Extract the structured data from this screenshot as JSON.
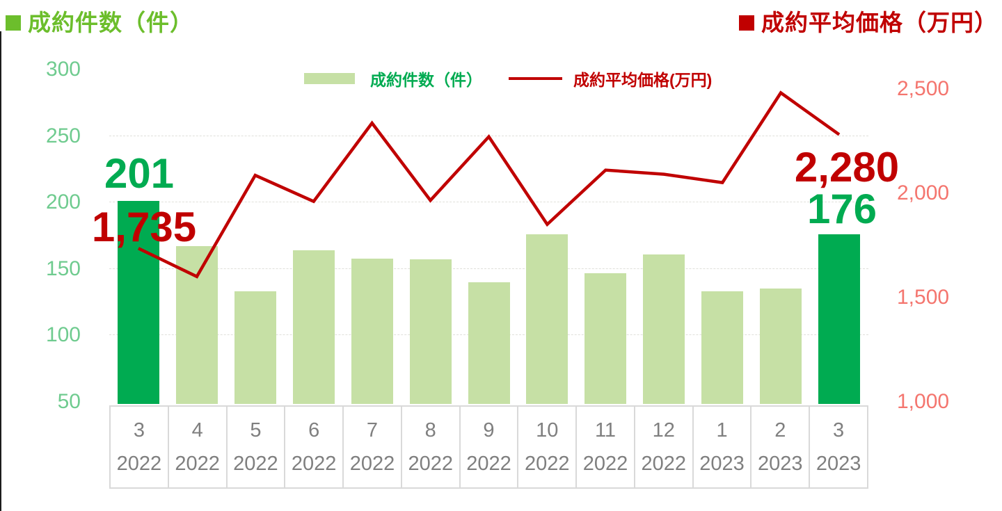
{
  "header": {
    "left_title": "成約件数（件）",
    "right_title": "成約平均価格（万円）"
  },
  "legend": {
    "bar_label": "成約件数（件）",
    "line_label": "成約平均価格(万円)"
  },
  "chart_data": {
    "type": "bar+line combo",
    "categories": [
      {
        "month": "3",
        "year": "2022"
      },
      {
        "month": "4",
        "year": "2022"
      },
      {
        "month": "5",
        "year": "2022"
      },
      {
        "month": "6",
        "year": "2022"
      },
      {
        "month": "7",
        "year": "2022"
      },
      {
        "month": "8",
        "year": "2022"
      },
      {
        "month": "9",
        "year": "2022"
      },
      {
        "month": "10",
        "year": "2022"
      },
      {
        "month": "11",
        "year": "2022"
      },
      {
        "month": "12",
        "year": "2022"
      },
      {
        "month": "1",
        "year": "2023"
      },
      {
        "month": "2",
        "year": "2023"
      },
      {
        "month": "3",
        "year": "2023"
      }
    ],
    "series": [
      {
        "name": "成約件数（件）",
        "type": "bar",
        "axis": "left",
        "values": [
          201,
          167,
          133,
          164,
          158,
          157,
          140,
          176,
          147,
          161,
          133,
          135,
          176
        ],
        "highlight_indices": [
          0,
          12
        ]
      },
      {
        "name": "成約平均価格(万円)",
        "type": "line",
        "axis": "right",
        "values": [
          1735,
          1600,
          2085,
          1960,
          2335,
          1965,
          2270,
          1850,
          2110,
          2090,
          2050,
          2480,
          2280
        ]
      }
    ],
    "left_axis": {
      "title": "成約件数（件）",
      "ticks": [
        "300",
        "250",
        "200",
        "150",
        "100",
        "50"
      ],
      "tick_values": [
        300,
        250,
        200,
        150,
        100,
        50
      ],
      "min": 50,
      "max": 300
    },
    "right_axis": {
      "title": "成約平均価格（万円）",
      "ticks": [
        "2,500",
        "2,000",
        "1,500",
        "1,000"
      ],
      "tick_values": [
        2500,
        2000,
        1500,
        1000
      ],
      "min": 1000,
      "max": 2500
    },
    "gridlines_at": [
      250,
      200,
      150,
      100
    ],
    "annotations": [
      {
        "text": "201",
        "series": "bar",
        "index": 0,
        "color_key": "dark_green"
      },
      {
        "text": "1,735",
        "series": "line",
        "index": 0,
        "color_key": "dark_red"
      },
      {
        "text": "2,280",
        "series": "line",
        "index": 12,
        "color_key": "dark_red"
      },
      {
        "text": "176",
        "series": "bar",
        "index": 12,
        "color_key": "dark_green"
      }
    ],
    "colors": {
      "bar_light_green": "#c6e0a5",
      "dark_green": "#00ab51",
      "title_green": "#6cbe2c",
      "dark_red": "#c00000",
      "axis_green": "#6fcb8f",
      "axis_salmon": "#f4756e",
      "category_gray": "#7f7f7f",
      "box_border_gray": "#d9d9d9",
      "gridline_gray": "#e0e0da"
    }
  }
}
